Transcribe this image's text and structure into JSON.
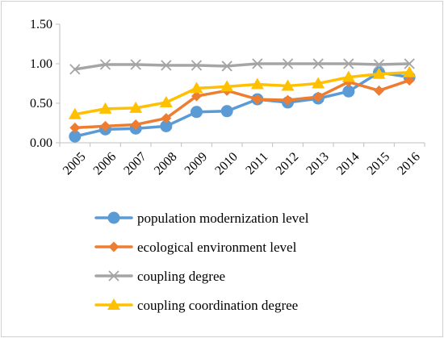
{
  "chart_data": {
    "type": "line",
    "x": [
      "2005",
      "2006",
      "2007",
      "2008",
      "2009",
      "2010",
      "2011",
      "2012",
      "2013",
      "2014",
      "2015",
      "2016"
    ],
    "ylim": [
      0,
      1.5
    ],
    "yticks": [
      "0.00",
      "0.50",
      "1.00",
      "1.50"
    ],
    "grid": false,
    "legend_position": "bottom",
    "series": [
      {
        "name": "population modernization level",
        "color": "#5B9BD5",
        "marker": "circle",
        "values": [
          0.08,
          0.17,
          0.18,
          0.21,
          0.39,
          0.4,
          0.55,
          0.51,
          0.56,
          0.65,
          0.89,
          0.83
        ]
      },
      {
        "name": "ecological environment level",
        "color": "#ED7D31",
        "marker": "diamond",
        "values": [
          0.19,
          0.21,
          0.23,
          0.31,
          0.59,
          0.66,
          0.55,
          0.54,
          0.58,
          0.77,
          0.66,
          0.79
        ]
      },
      {
        "name": "coupling degree",
        "color": "#A5A5A5",
        "marker": "x",
        "values": [
          0.93,
          0.99,
          0.99,
          0.98,
          0.98,
          0.97,
          1.0,
          1.0,
          1.0,
          1.0,
          0.99,
          1.0
        ]
      },
      {
        "name": "coupling coordination degree",
        "color": "#FFC000",
        "marker": "triangle",
        "values": [
          0.36,
          0.43,
          0.44,
          0.51,
          0.69,
          0.71,
          0.74,
          0.72,
          0.75,
          0.83,
          0.87,
          0.89
        ]
      }
    ]
  }
}
